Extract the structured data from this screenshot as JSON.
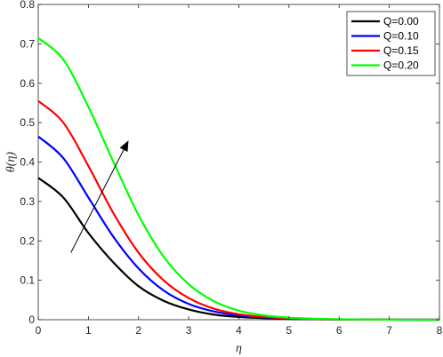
{
  "chart_data": {
    "type": "line",
    "xlabel": "η",
    "ylabel": "θ(η)",
    "xlim": [
      0,
      8
    ],
    "ylim": [
      0,
      0.8
    ],
    "xticks": [
      "0",
      "1",
      "2",
      "3",
      "4",
      "5",
      "6",
      "7",
      "8"
    ],
    "yticks": [
      "0",
      "0.1",
      "0.2",
      "0.3",
      "0.4",
      "0.5",
      "0.6",
      "0.7",
      "0.8"
    ],
    "grid": false,
    "legend_position": "top-right",
    "x": [
      0,
      0.5,
      1,
      1.5,
      2,
      2.5,
      3,
      3.5,
      4,
      4.5,
      5,
      5.5,
      6,
      6.5,
      7,
      7.5,
      8
    ],
    "series": [
      {
        "name": "Q=0.00",
        "color": "#000000",
        "values": [
          0.36,
          0.31,
          0.22,
          0.145,
          0.085,
          0.048,
          0.026,
          0.013,
          0.007,
          0.004,
          0.002,
          0.001,
          0.0005,
          0.0002,
          0.0001,
          0.0,
          0.0
        ]
      },
      {
        "name": "Q=0.10",
        "color": "#0000ff",
        "values": [
          0.465,
          0.41,
          0.31,
          0.21,
          0.13,
          0.074,
          0.04,
          0.021,
          0.011,
          0.006,
          0.003,
          0.0015,
          0.0007,
          0.0003,
          0.0001,
          0.0,
          0.0
        ]
      },
      {
        "name": "Q=0.15",
        "color": "#ff0000",
        "values": [
          0.555,
          0.5,
          0.39,
          0.27,
          0.17,
          0.1,
          0.055,
          0.028,
          0.014,
          0.007,
          0.0035,
          0.0017,
          0.0008,
          0.0004,
          0.0002,
          0.0001,
          0.0
        ]
      },
      {
        "name": "Q=0.20",
        "color": "#00ff00",
        "values": [
          0.715,
          0.66,
          0.54,
          0.4,
          0.265,
          0.16,
          0.09,
          0.047,
          0.023,
          0.011,
          0.005,
          0.0025,
          0.0012,
          0.0005,
          0.0002,
          0.0001,
          0.0
        ]
      }
    ],
    "annotation": {
      "type": "arrow",
      "from": [
        0.65,
        0.17
      ],
      "to": [
        1.8,
        0.455
      ]
    }
  }
}
